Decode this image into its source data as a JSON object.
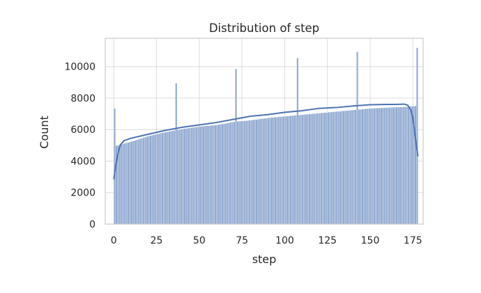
{
  "chart_data": {
    "type": "bar",
    "subtype": "histogram_with_kde",
    "title": "Distribution of step",
    "xlabel": "step",
    "ylabel": "Count",
    "xlim": [
      -5,
      181
    ],
    "ylim": [
      0,
      11800
    ],
    "xticks": [
      0,
      25,
      50,
      75,
      100,
      125,
      150,
      175
    ],
    "xtick_labels": [
      "0",
      "25",
      "50",
      "75",
      "100",
      "125",
      "150",
      "175"
    ],
    "yticks": [
      0,
      2000,
      4000,
      6000,
      8000,
      10000
    ],
    "ytick_labels": [
      "0",
      "2000",
      "4000",
      "6000",
      "8000",
      "10000"
    ],
    "grid": true,
    "bin_width": 2,
    "bin_start": 0,
    "spikes": {
      "0": 7350,
      "36": 8950,
      "71": 9850,
      "107": 10550,
      "142": 10950,
      "177": 11200
    },
    "trend_x": [
      0,
      10,
      20,
      30,
      40,
      50,
      60,
      70,
      80,
      90,
      100,
      110,
      120,
      130,
      140,
      150,
      160,
      170,
      176
    ],
    "trend_y": [
      4950,
      5250,
      5600,
      5850,
      6050,
      6200,
      6300,
      6500,
      6600,
      6750,
      6850,
      6950,
      7050,
      7150,
      7250,
      7350,
      7400,
      7450,
      7500
    ],
    "kde_x": [
      0,
      1,
      2,
      3,
      4,
      6,
      10,
      20,
      30,
      40,
      50,
      60,
      70,
      80,
      90,
      100,
      110,
      120,
      130,
      140,
      150,
      160,
      165,
      170,
      172,
      174,
      175,
      176,
      177,
      178
    ],
    "kde_y": [
      2850,
      3600,
      4250,
      4750,
      5050,
      5300,
      5450,
      5700,
      5950,
      6150,
      6300,
      6450,
      6650,
      6850,
      6950,
      7100,
      7200,
      7350,
      7400,
      7500,
      7580,
      7600,
      7600,
      7620,
      7550,
      7200,
      6700,
      5900,
      5000,
      4300
    ],
    "bar_color": "#8fa8d0",
    "bar_edge_color": "#ffffff",
    "kde_color": "#4c72b0",
    "grid_color": "#dcdcdc",
    "frame_color": "#cccccc"
  }
}
